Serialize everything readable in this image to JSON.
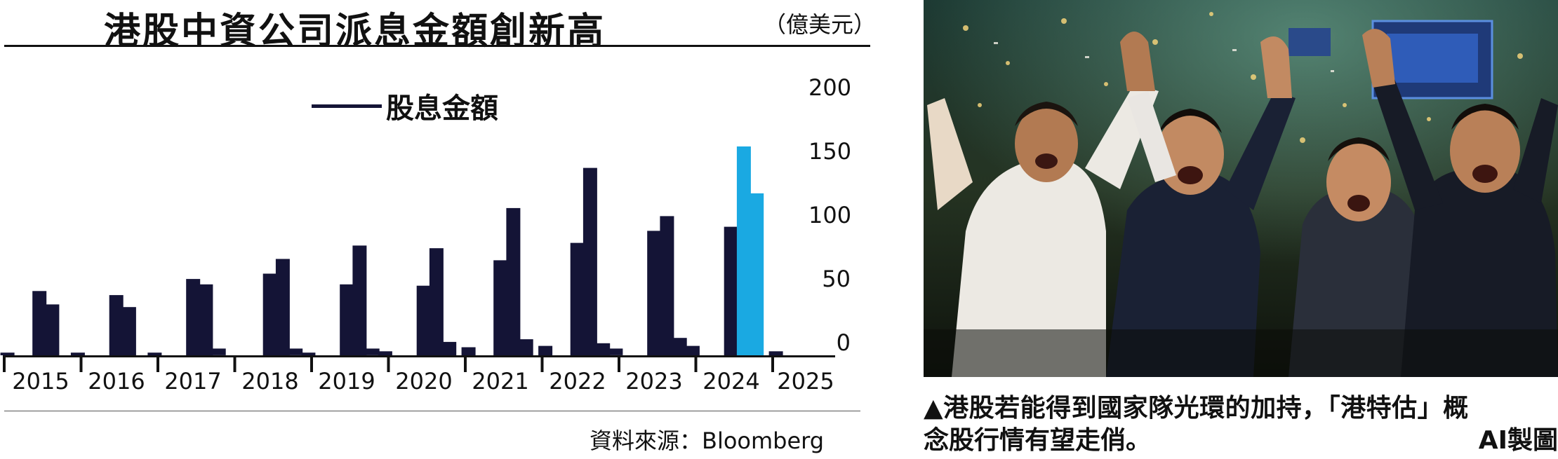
{
  "header": {
    "title": "港股中資公司派息金額創新高",
    "unit": "（億美元）"
  },
  "chart_data": {
    "type": "bar",
    "title": "港股中資公司派息金額創新高",
    "unit": "（億美元）",
    "legend": [
      "股息金額"
    ],
    "legend_placement": "top-center",
    "ylim": [
      0,
      200
    ],
    "y_ticks": [
      "200",
      "150",
      "100",
      "50",
      "0"
    ],
    "y_axis_side": "right",
    "year_labels": [
      "2015",
      "2016",
      "2017",
      "2018",
      "2019",
      "2020",
      "2021",
      "2022",
      "2023",
      "2024",
      "2025"
    ],
    "series": [
      {
        "name": "股息金額",
        "color": "#141436",
        "highlight_color": "#1aa9e2",
        "bars": [
          {
            "year": "2015",
            "month": 1,
            "value": 2
          },
          {
            "year": "2015",
            "month": 6,
            "value": 48
          },
          {
            "year": "2015",
            "month": 8,
            "value": 38
          },
          {
            "year": "2015",
            "month": 12,
            "value": 2
          },
          {
            "year": "2016",
            "month": 6,
            "value": 45
          },
          {
            "year": "2016",
            "month": 8,
            "value": 36
          },
          {
            "year": "2016",
            "month": 12,
            "value": 2
          },
          {
            "year": "2017",
            "month": 6,
            "value": 57
          },
          {
            "year": "2017",
            "month": 8,
            "value": 53
          },
          {
            "year": "2017",
            "month": 10,
            "value": 5
          },
          {
            "year": "2018",
            "month": 6,
            "value": 61
          },
          {
            "year": "2018",
            "month": 8,
            "value": 72
          },
          {
            "year": "2018",
            "month": 10,
            "value": 5
          },
          {
            "year": "2018",
            "month": 12,
            "value": 2
          },
          {
            "year": "2019",
            "month": 6,
            "value": 53
          },
          {
            "year": "2019",
            "month": 8,
            "value": 82
          },
          {
            "year": "2019",
            "month": 10,
            "value": 5
          },
          {
            "year": "2019",
            "month": 12,
            "value": 3
          },
          {
            "year": "2020",
            "month": 6,
            "value": 52
          },
          {
            "year": "2020",
            "month": 8,
            "value": 80
          },
          {
            "year": "2020",
            "month": 10,
            "value": 10
          },
          {
            "year": "2021",
            "month": 1,
            "value": 6
          },
          {
            "year": "2021",
            "month": 6,
            "value": 71
          },
          {
            "year": "2021",
            "month": 8,
            "value": 110
          },
          {
            "year": "2021",
            "month": 10,
            "value": 12
          },
          {
            "year": "2022",
            "month": 1,
            "value": 7
          },
          {
            "year": "2022",
            "month": 6,
            "value": 84
          },
          {
            "year": "2022",
            "month": 8,
            "value": 140
          },
          {
            "year": "2022",
            "month": 10,
            "value": 9
          },
          {
            "year": "2022",
            "month": 12,
            "value": 5
          },
          {
            "year": "2023",
            "month": 6,
            "value": 93
          },
          {
            "year": "2023",
            "month": 8,
            "value": 104
          },
          {
            "year": "2023",
            "month": 10,
            "value": 13
          },
          {
            "year": "2023",
            "month": 12,
            "value": 7
          },
          {
            "year": "2024",
            "month": 6,
            "value": 96
          },
          {
            "year": "2024",
            "month": 8,
            "value": 156,
            "highlight": true
          },
          {
            "year": "2024",
            "month": 10,
            "value": 121,
            "highlight": true
          },
          {
            "year": "2025",
            "month": 1,
            "value": 3
          }
        ]
      }
    ]
  },
  "source": "資料來源：Bloomberg",
  "photo": {
    "alt": "港股交易大堂歡呼人群"
  },
  "caption": {
    "line1": "▲港股若能得到國家隊光環的加持，「港特估」概",
    "line2": "念股行情有望走俏。",
    "credit": "AI製圖"
  }
}
